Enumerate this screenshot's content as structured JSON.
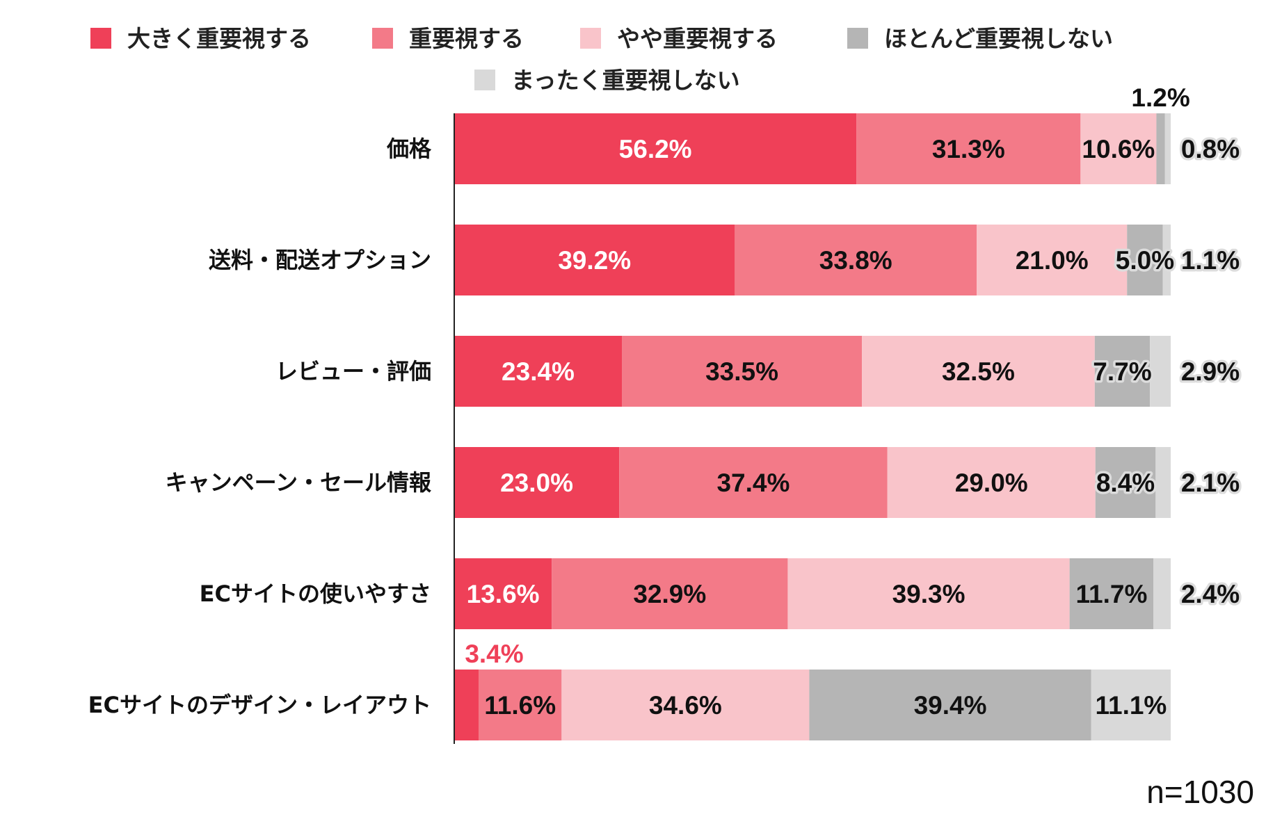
{
  "chart_data": {
    "type": "bar",
    "orientation": "horizontal-stacked-100",
    "categories": [
      "価格",
      "送料・配送オプション",
      "レビュー・評価",
      "キャンペーン・セール情報",
      "ECサイトの使いやすさ",
      "ECサイトのデザイン・レイアウト"
    ],
    "series": [
      {
        "name": "大きく重要視する",
        "color": "#EF4058",
        "values": [
          56.2,
          39.2,
          23.4,
          23.0,
          13.6,
          3.4
        ]
      },
      {
        "name": "重要視する",
        "color": "#F37A88",
        "values": [
          31.3,
          33.8,
          33.5,
          37.4,
          32.9,
          11.6
        ]
      },
      {
        "name": "やや重要視する",
        "color": "#F9C4CA",
        "values": [
          10.6,
          21.0,
          32.5,
          29.0,
          39.3,
          34.6
        ]
      },
      {
        "name": "ほとんど重要視しない",
        "color": "#B5B5B5",
        "values": [
          1.2,
          5.0,
          7.7,
          8.4,
          11.7,
          39.4
        ]
      },
      {
        "name": "まったく重要視しない",
        "color": "#D9D9D9",
        "values": [
          0.8,
          1.1,
          2.9,
          2.1,
          2.4,
          11.1
        ]
      }
    ],
    "legend_position": "top",
    "value_suffix": "%",
    "xlim": [
      0,
      100
    ],
    "grid": false,
    "annotation": "n=1030"
  }
}
